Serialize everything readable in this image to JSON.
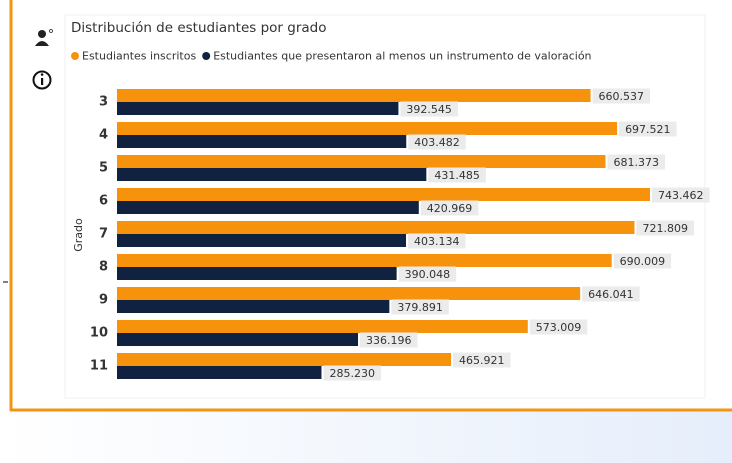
{
  "chart_data": {
    "type": "bar",
    "orientation": "horizontal",
    "title": "Distribución de estudiantes por grado",
    "y_label": "Grado",
    "categories": [
      "3",
      "4",
      "5",
      "6",
      "7",
      "8",
      "9",
      "10",
      "11"
    ],
    "series": [
      {
        "name": "Estudiantes inscritos",
        "color": "#f7920c",
        "values": [
          660537,
          697521,
          681373,
          743462,
          721809,
          690009,
          646041,
          573009,
          465921
        ],
        "value_labels": [
          "660.537",
          "697.521",
          "681.373",
          "743.462",
          "721.809",
          "690.009",
          "646.041",
          "573.009",
          "465.921"
        ]
      },
      {
        "name": "Estudiantes que presentaron al menos un instrumento de valoración",
        "color": "#10223f",
        "values": [
          392545,
          403482,
          431485,
          420969,
          403134,
          390048,
          379891,
          336196,
          285230
        ],
        "value_labels": [
          "392.545",
          "403.482",
          "431.485",
          "420.969",
          "403.134",
          "390.048",
          "379.891",
          "336.196",
          "285.230"
        ]
      }
    ],
    "legend": "top-left"
  }
}
